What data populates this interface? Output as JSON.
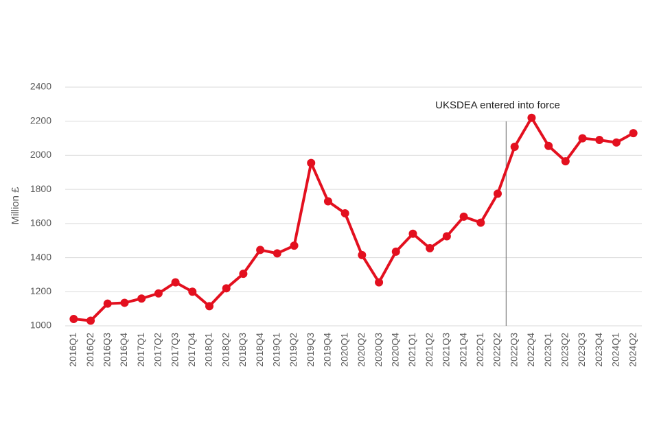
{
  "chart_data": {
    "type": "line",
    "title": "",
    "xlabel": "",
    "ylabel": "Million £",
    "ylim": [
      1000,
      2400
    ],
    "yticks": [
      1000,
      1200,
      1400,
      1600,
      1800,
      2000,
      2200,
      2400
    ],
    "grid": true,
    "colors": {
      "series": "#e3101f",
      "annotation_line": "#808080",
      "grid": "#d9d9d9",
      "text": "#595959"
    },
    "categories": [
      "2016Q1",
      "2016Q2",
      "2016Q3",
      "2016Q4",
      "2017Q1",
      "2017Q2",
      "2017Q3",
      "2017Q4",
      "2018Q1",
      "2018Q2",
      "2018Q3",
      "2018Q4",
      "2019Q1",
      "2019Q2",
      "2019Q3",
      "2019Q4",
      "2020Q1",
      "2020Q2",
      "2020Q3",
      "2020Q4",
      "2021Q1",
      "2021Q2",
      "2021Q3",
      "2021Q4",
      "2022Q1",
      "2022Q2",
      "2022Q3",
      "2022Q4",
      "2023Q1",
      "2023Q2",
      "2023Q3",
      "2023Q4",
      "2024Q1",
      "2024Q2"
    ],
    "series": [
      {
        "values": [
          1040,
          1030,
          1130,
          1135,
          1160,
          1190,
          1255,
          1200,
          1115,
          1220,
          1305,
          1445,
          1425,
          1470,
          1955,
          1730,
          1660,
          1415,
          1255,
          1435,
          1540,
          1455,
          1525,
          1640,
          1605,
          1775,
          2050,
          2220,
          2055,
          1965,
          2100,
          2090,
          2075,
          2130
        ]
      }
    ],
    "annotation": {
      "text": "UKSDEA entered into force",
      "after_category": "2022Q2"
    }
  }
}
